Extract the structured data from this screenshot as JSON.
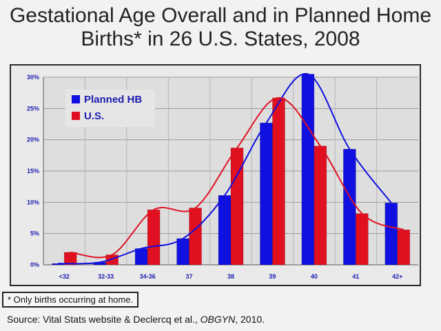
{
  "title_line1": "Gestational Age Overall and in Planned Home",
  "title_line2": "Births* in 26 U.S. States, 2008",
  "footnote": "* Only births occurring at home.",
  "source": {
    "prefix": "Source: Vital Stats website & Declercq et al., ",
    "journal": "OBGYN",
    "suffix": ", 2010."
  },
  "colors": {
    "planned_hb": "#1010e0",
    "us": "#e01020"
  },
  "chart_data": {
    "type": "bar",
    "title": "Gestational Age Overall and in Planned Home Births* in 26 U.S. States, 2008",
    "xlabel": "",
    "ylabel": "",
    "categories": [
      "<32",
      "32-33",
      "34-36",
      "37",
      "38",
      "39",
      "40",
      "41",
      "42+"
    ],
    "ylim": [
      0,
      30
    ],
    "yticks": [
      "0%",
      "5%",
      "10%",
      "15%",
      "20%",
      "25%",
      "30%"
    ],
    "grid": true,
    "legend": "top-left",
    "series": [
      {
        "name": "Planned HB",
        "values": [
          0.2,
          0.4,
          2.6,
          4.2,
          11.1,
          22.7,
          30.5,
          18.5,
          9.9
        ]
      },
      {
        "name": "U.S.",
        "values": [
          2.0,
          1.6,
          8.8,
          9.1,
          18.7,
          26.7,
          19.0,
          8.2,
          5.6
        ]
      }
    ],
    "annotations": [
      "smoothed trend line overlaid on each series"
    ]
  }
}
